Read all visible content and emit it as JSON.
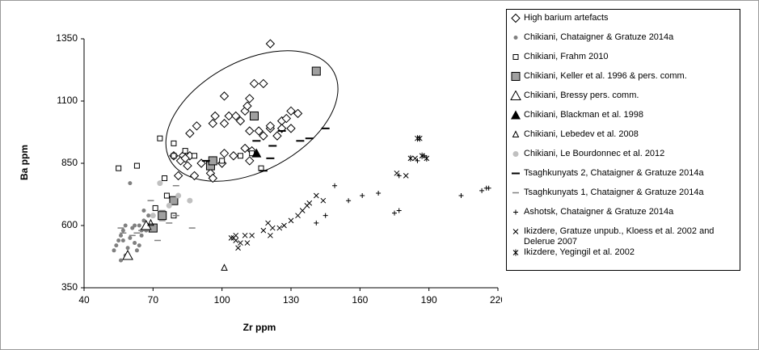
{
  "chart_data": {
    "type": "scatter",
    "xlabel": "Zr ppm",
    "ylabel": "Ba ppm",
    "xlim": [
      40,
      220
    ],
    "xticks": [
      40,
      70,
      100,
      130,
      160,
      190,
      220
    ],
    "ylim": [
      350,
      1350
    ],
    "yticks": [
      350,
      600,
      850,
      1100,
      1350
    ],
    "grid": false,
    "series": [
      {
        "name": "High barium artefacts",
        "marker": "diamond",
        "color": "#000000",
        "x": [
          121,
          101,
          114,
          118,
          97,
          103,
          96,
          110,
          111,
          112,
          126,
          128,
          130,
          133,
          106,
          108,
          89,
          86,
          101,
          112,
          116,
          121,
          124,
          126,
          130,
          83,
          86,
          79,
          82,
          84,
          91,
          96,
          101,
          105,
          110,
          113,
          118,
          121,
          85,
          81,
          88,
          95,
          96,
          112,
          100
        ],
        "y": [
          1330,
          1120,
          1170,
          1170,
          1040,
          1040,
          1010,
          1060,
          1080,
          1110,
          1020,
          1030,
          1060,
          1050,
          1040,
          1020,
          1000,
          970,
          1010,
          980,
          980,
          990,
          960,
          990,
          990,
          880,
          880,
          880,
          860,
          870,
          850,
          860,
          890,
          880,
          910,
          900,
          960,
          1000,
          840,
          800,
          800,
          810,
          790,
          860,
          850
        ]
      },
      {
        "name": "Chikiani, Chataigner & Gratuze 2014a",
        "marker": "dot",
        "color": "#808080",
        "x": [
          54,
          55,
          56,
          57,
          58,
          56,
          58,
          60,
          62,
          63,
          64,
          65,
          57,
          59,
          61,
          62,
          65,
          66,
          67,
          53,
          64,
          60,
          68,
          66
        ],
        "y": [
          520,
          540,
          560,
          580,
          600,
          460,
          480,
          550,
          530,
          500,
          520,
          560,
          540,
          510,
          590,
          600,
          580,
          620,
          580,
          500,
          600,
          770,
          640,
          660
        ]
      },
      {
        "name": "Chikiani, Frahm 2010",
        "marker": "square-open",
        "color": "#000000",
        "x": [
          55,
          63,
          73,
          79,
          79,
          84,
          88,
          75,
          71,
          76,
          79,
          100,
          108,
          113,
          117
        ],
        "y": [
          830,
          840,
          950,
          930,
          880,
          900,
          880,
          790,
          670,
          720,
          640,
          860,
          880,
          890,
          830
        ]
      },
      {
        "name": "Chikiani, Keller et al. 1996 & pers. comm.",
        "marker": "square-filled",
        "color": "#a0a0a0",
        "x": [
          141,
          114,
          95,
          79,
          74,
          70,
          96
        ],
        "y": [
          1220,
          1040,
          840,
          700,
          640,
          590,
          860
        ]
      },
      {
        "name": "Chikiani, Bressy pers. comm.",
        "marker": "triangle-open",
        "color": "#000000",
        "x": [
          59,
          67
        ],
        "y": [
          480,
          600
        ]
      },
      {
        "name": "Chikiani, Blackman et al. 1998",
        "marker": "triangle-filled",
        "color": "#000000",
        "x": [
          115
        ],
        "y": [
          890
        ]
      },
      {
        "name": "Chikiani, Lebedev et al. 2008",
        "marker": "triangle-small",
        "color": "#000000",
        "x": [
          101,
          69
        ],
        "y": [
          430,
          610
        ]
      },
      {
        "name": "Chikiani, Le Bourdonnec et al. 2012",
        "marker": "dot-large",
        "color": "#c0c0c0",
        "x": [
          73,
          81,
          86,
          77,
          70
        ],
        "y": [
          770,
          720,
          700,
          680,
          640
        ]
      },
      {
        "name": "Tsaghkunyats 2, Chataigner & Gratuze 2014a",
        "marker": "dash-thick",
        "color": "#000000",
        "x": [
          126,
          145,
          138,
          134,
          115,
          122,
          118,
          93,
          121
        ],
        "y": [
          980,
          990,
          950,
          940,
          940,
          920,
          820,
          860,
          870
        ]
      },
      {
        "name": "Tsaghkunyats 1, Chataigner & Gratuze 2014a",
        "marker": "dash-thin",
        "color": "#808080",
        "x": [
          56,
          61,
          63,
          65,
          74,
          74,
          77,
          80,
          80,
          87,
          72,
          69,
          57
        ],
        "y": [
          590,
          560,
          570,
          580,
          620,
          660,
          610,
          640,
          760,
          590,
          540,
          700,
          570
        ]
      },
      {
        "name": "Ashotsk, Chataigner & Gratuze 2014a",
        "marker": "plus",
        "color": "#000000",
        "x": [
          141,
          145,
          155,
          161,
          168,
          175,
          177,
          177,
          185,
          188,
          204,
          213,
          215,
          216,
          149
        ],
        "y": [
          610,
          640,
          700,
          720,
          730,
          650,
          660,
          800,
          860,
          880,
          720,
          740,
          750,
          750,
          760
        ]
      },
      {
        "name": "Ikizdere, Gratuze unpub., Kloess et al. 2002 and Delerue 2007",
        "marker": "cross",
        "color": "#000000",
        "x": [
          105,
          106,
          107,
          108,
          110,
          111,
          113,
          118,
          120,
          121,
          122,
          125,
          127,
          130,
          133,
          135,
          137,
          138,
          141,
          144,
          176,
          180,
          184,
          106,
          104
        ],
        "y": [
          550,
          540,
          510,
          530,
          560,
          530,
          560,
          580,
          610,
          560,
          590,
          590,
          600,
          620,
          640,
          660,
          680,
          690,
          720,
          700,
          810,
          800,
          870,
          560,
          550
        ]
      },
      {
        "name": "Ikizdere, Yegingil et al. 2002",
        "marker": "star",
        "color": "#000000",
        "x": [
          185,
          186,
          182,
          187,
          189
        ],
        "y": [
          950,
          950,
          870,
          880,
          870
        ]
      }
    ]
  }
}
